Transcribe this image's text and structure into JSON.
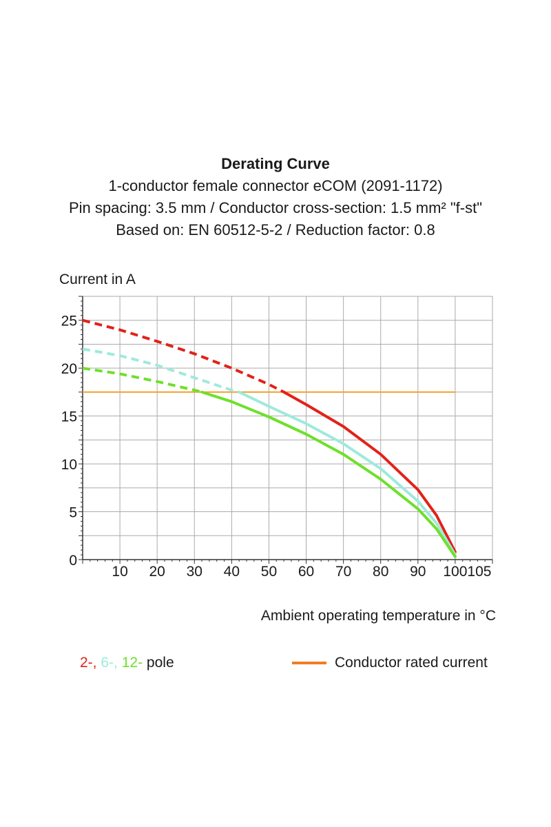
{
  "header": {
    "title": "Derating Curve",
    "line1": "1-conductor female connector eCOM (2091-1172)",
    "line2": "Pin spacing: 3.5 mm / Conductor cross-section: 1.5 mm² \"f-st\"",
    "line3": "Based on: EN 60512-5-2 / Reduction factor: 0.8"
  },
  "legend": {
    "pole_2": "2-,",
    "pole_6": "6-,",
    "pole_12": "12-",
    "pole_suffix": "pole",
    "rated": "Conductor rated current"
  },
  "colors": {
    "red": "#e32119",
    "cyan": "#9eeadc",
    "green": "#6ee02b",
    "orange": "#f5a12e",
    "grid": "#aaaaaa",
    "rated_legend": "#ef7d22"
  },
  "chart_data": {
    "type": "line",
    "title": "Derating Curve",
    "xlabel": "Ambient operating temperature in °C",
    "ylabel": "Current in A",
    "xlim": [
      0,
      110
    ],
    "ylim": [
      0,
      27.5
    ],
    "x_ticks": [
      10,
      20,
      30,
      40,
      50,
      60,
      70,
      80,
      90,
      100,
      105
    ],
    "y_ticks": [
      0,
      5,
      10,
      15,
      20,
      25
    ],
    "rated_current": 17.5,
    "rated_current_x_range": [
      0,
      100
    ],
    "series": [
      {
        "name": "2-pole",
        "color": "red",
        "x": [
          0,
          10,
          20,
          30,
          40,
          50,
          54,
          60,
          70,
          80,
          90,
          95,
          100
        ],
        "y": [
          25,
          24,
          22.8,
          21.5,
          20,
          18.3,
          17.5,
          16.2,
          13.9,
          11,
          7.3,
          4.6,
          0.8
        ]
      },
      {
        "name": "6-pole",
        "color": "cyan",
        "x": [
          0,
          10,
          20,
          30,
          40,
          42,
          50,
          60,
          70,
          80,
          90,
          95,
          100
        ],
        "y": [
          22,
          21.3,
          20.3,
          19,
          17.7,
          17.5,
          16,
          14.2,
          12.1,
          9.5,
          6.1,
          3.8,
          0.5
        ]
      },
      {
        "name": "12-pole",
        "color": "green",
        "x": [
          0,
          10,
          20,
          30,
          32,
          40,
          50,
          60,
          70,
          80,
          90,
          95,
          100
        ],
        "y": [
          20,
          19.4,
          18.6,
          17.7,
          17.5,
          16.5,
          14.9,
          13.1,
          11,
          8.4,
          5.3,
          3.2,
          0.3
        ]
      }
    ]
  }
}
